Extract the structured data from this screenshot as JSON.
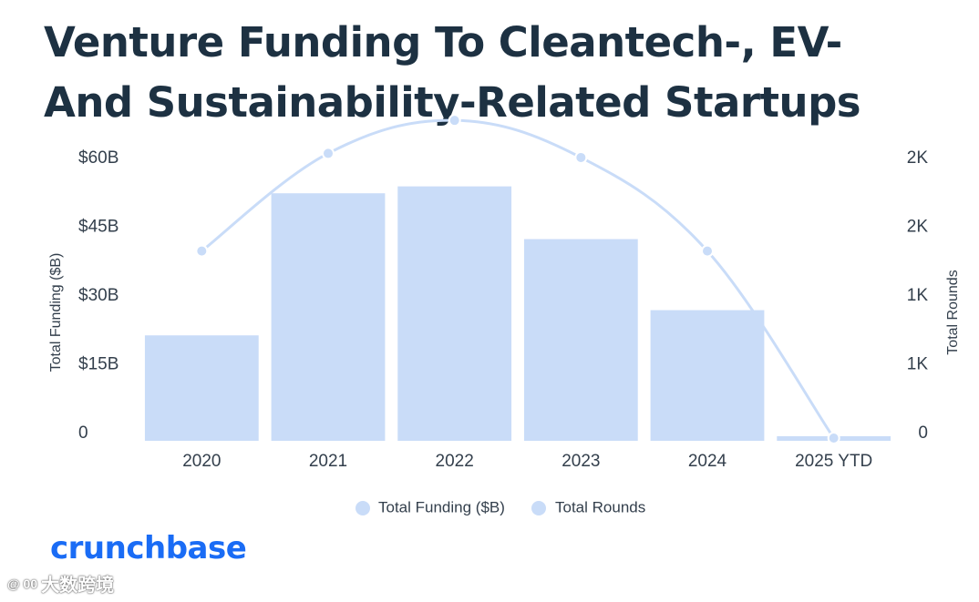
{
  "title": {
    "line1": "Venture Funding To Cleantech-, EV-",
    "line2": "And Sustainability-Related Startups"
  },
  "chart_data": {
    "type": "bar+line",
    "categories": [
      "2020",
      "2021",
      "2022",
      "2023",
      "2024",
      "2025 YTD"
    ],
    "series": [
      {
        "name": "Total Funding ($B)",
        "type": "bar",
        "axis": "left",
        "values": [
          23,
          54,
          55.5,
          44,
          28.5,
          1
        ]
      },
      {
        "name": "Total Rounds",
        "type": "line",
        "axis": "right",
        "values": [
          1380,
          2090,
          2330,
          2060,
          1380,
          20
        ]
      }
    ],
    "left_axis": {
      "label": "Total Funding ($B)",
      "ylim": [
        0,
        60
      ],
      "ticks": [
        0,
        15,
        30,
        45,
        60
      ],
      "tick_labels": [
        "0",
        "$15B",
        "$30B",
        "$45B",
        "$60B"
      ]
    },
    "right_axis": {
      "label": "Total Rounds",
      "ylim": [
        0,
        2000
      ],
      "ticks": [
        0,
        500,
        1000,
        1500,
        2000
      ],
      "tick_labels": [
        "0",
        "1K",
        "1K",
        "2K",
        "2K"
      ]
    },
    "legend": [
      "Total Funding ($B)",
      "Total Rounds"
    ],
    "legend_position": "bottom",
    "colors": {
      "bar": "#c9dcf8",
      "line": "#c9dcf8",
      "text": "#333f4c"
    }
  },
  "brand": {
    "logo": "crunchbase"
  },
  "watermark": {
    "text": "大数跨境",
    "icon": "@ 00"
  }
}
